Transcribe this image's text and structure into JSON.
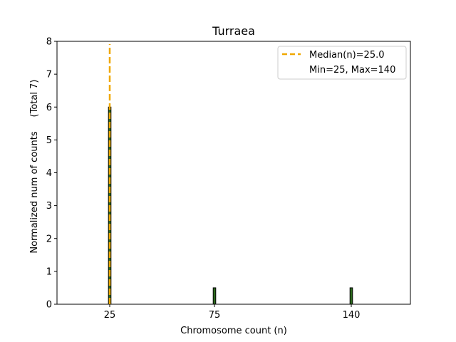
{
  "chart_data": {
    "type": "bar",
    "title": "Turraea",
    "xlabel": "Chromosome count (n)",
    "ylabel": "Normalized num of counts",
    "ylabel_total": "(Total 7)",
    "categories": [
      "25",
      "75",
      "140"
    ],
    "values": [
      6,
      0.5,
      0.5
    ],
    "ylim": [
      0,
      8
    ],
    "yticks": [
      0,
      1,
      2,
      3,
      4,
      5,
      6,
      7,
      8
    ],
    "median": 25.0,
    "min": 25,
    "max": 140,
    "legend": {
      "placement": "top-right",
      "median_label": "Median(n)=25.0",
      "range_label": "Min=25, Max=140"
    },
    "colors": {
      "bar": "#2d6a1e",
      "bar_edge": "#000000",
      "median_line": "#f0a800"
    }
  }
}
